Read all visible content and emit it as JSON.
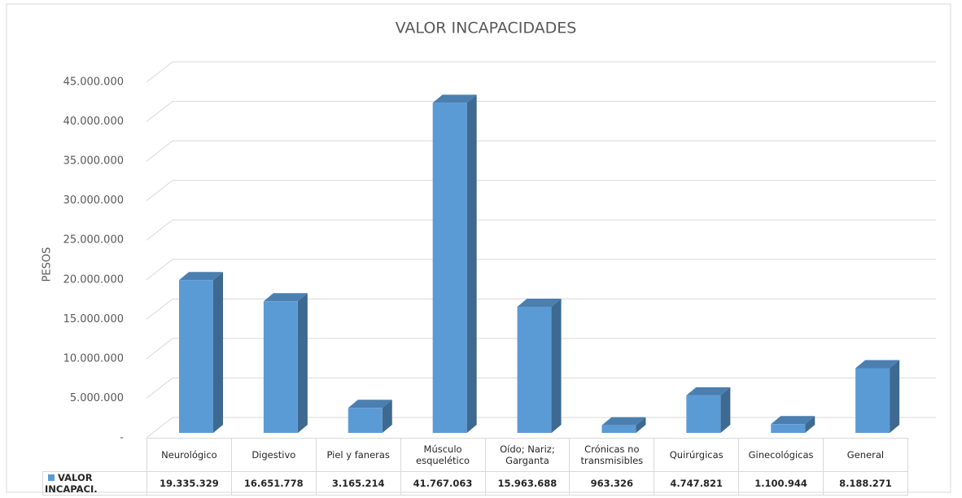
{
  "chart_data": {
    "type": "bar3d",
    "title": "VALOR INCAPACIDADES",
    "y_label": "PESOS",
    "categories": [
      "Neurológico",
      "Digestivo",
      "Piel y faneras",
      "Músculo esquelético",
      "Oído; Nariz; Garganta",
      "Crónicas no transmisibles",
      "Quirúrgicas",
      "Ginecológicas",
      "General"
    ],
    "series": [
      {
        "name": "VALOR INCAPACI.",
        "color": "#5b9bd5",
        "values": [
          19335329,
          16651778,
          3165214,
          41767063,
          15963688,
          963326,
          4747821,
          1100944,
          8188271
        ],
        "value_labels": [
          "19.335.329",
          "16.651.778",
          "3.165.214",
          "41.767.063",
          "15.963.688",
          "963.326",
          "4.747.821",
          "1.100.944",
          "8.188.271"
        ]
      }
    ],
    "ylim": [
      0,
      45000000
    ],
    "yticks": [
      {
        "value": 0,
        "label": "-"
      },
      {
        "value": 5000000,
        "label": "5.000.000"
      },
      {
        "value": 10000000,
        "label": "10.000.000"
      },
      {
        "value": 15000000,
        "label": "15.000.000"
      },
      {
        "value": 20000000,
        "label": "20.000.000"
      },
      {
        "value": 25000000,
        "label": "25.000.000"
      },
      {
        "value": 30000000,
        "label": "30.000.000"
      },
      {
        "value": 35000000,
        "label": "35.000.000"
      },
      {
        "value": 40000000,
        "label": "40.000.000"
      },
      {
        "value": 45000000,
        "label": "45.000.000"
      }
    ],
    "grid": true
  }
}
